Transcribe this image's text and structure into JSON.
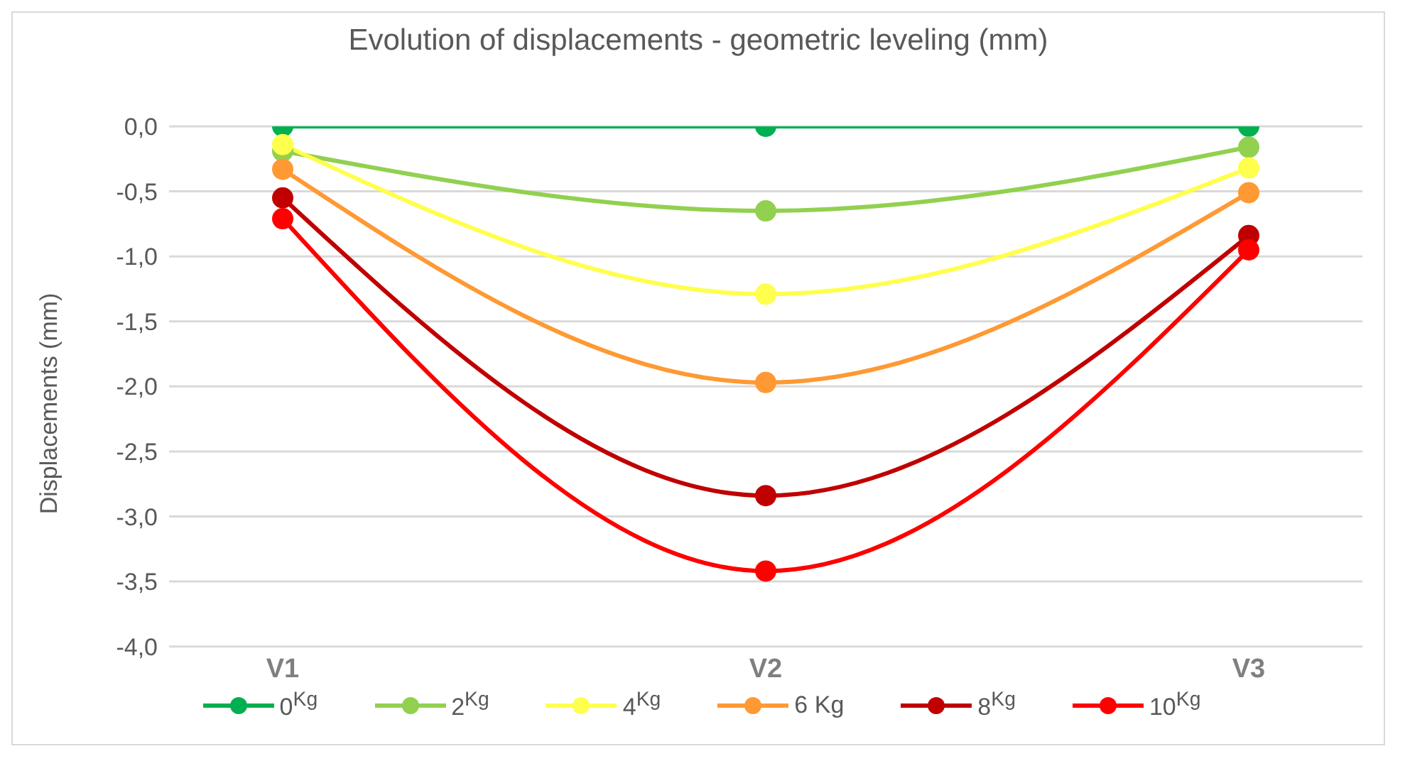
{
  "chart_data": {
    "type": "line",
    "title": "Evolution of displacements - geometric leveling (mm)",
    "ylabel": "Displacements (mm)",
    "categories": [
      "V1",
      "V2",
      "V3"
    ],
    "series": [
      {
        "name": "0$^{Kg}$",
        "color": "#00b050",
        "values": [
          0,
          0,
          0
        ]
      },
      {
        "name": "2$^{Kg}$",
        "color": "#92d050",
        "values": [
          -0.19,
          -0.65,
          -0.16
        ]
      },
      {
        "name": "4$^{Kg}$",
        "color": "#ffff4d",
        "values": [
          -0.14,
          -1.29,
          -0.32
        ]
      },
      {
        "name": "6 Kg",
        "color": "#ff9933",
        "values": [
          -0.33,
          -1.97,
          -0.51
        ]
      },
      {
        "name": "8$^{Kg}$",
        "color": "#c00000",
        "values": [
          -0.55,
          -2.84,
          -0.84
        ]
      },
      {
        "name": "10$^{Kg}$",
        "color": "#ff0000",
        "values": [
          -0.71,
          -3.42,
          -0.95
        ]
      }
    ],
    "ylim": [
      -4,
      0
    ],
    "yticks": [
      {
        "value": 0,
        "label": "0,0"
      },
      {
        "value": -0.5,
        "label": "-0,5"
      },
      {
        "value": -1,
        "label": "-1,0"
      },
      {
        "value": -1.5,
        "label": "-1,5"
      },
      {
        "value": -2,
        "label": "-2,0"
      },
      {
        "value": -2.5,
        "label": "-2,5"
      },
      {
        "value": -3,
        "label": "-3,0"
      },
      {
        "value": -3.5,
        "label": "-3,5"
      },
      {
        "value": -4,
        "label": "-4,0"
      }
    ],
    "grid": "y",
    "legend": "bottom",
    "marker": "circle",
    "line_style": "solid"
  }
}
